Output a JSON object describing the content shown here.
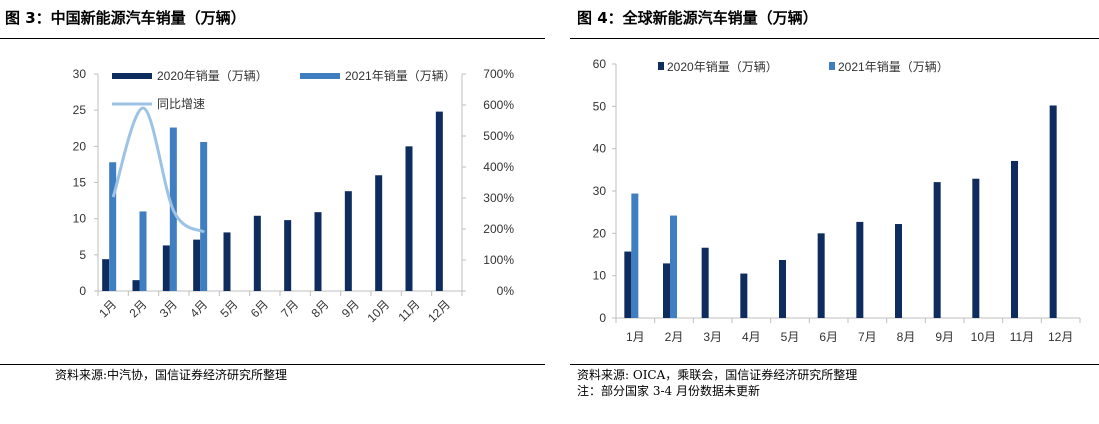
{
  "colors": {
    "series2020": "#0e2d5e",
    "series2021": "#3f7fc1",
    "growth": "#9cc3e6",
    "axis": "#bfbfbf"
  },
  "left": {
    "title": "图 3：中国新能源汽车销量（万辆）",
    "source": "资料来源:中汽协，国信证券经济研究所整理"
  },
  "right": {
    "title": "图 4：全球新能源汽车销量（万辆）",
    "source": "资料来源: OICA，乘联会，国信证券经济研究所整理",
    "note": "注：部分国家 3-4 月份数据未更新"
  },
  "chart_data": [
    {
      "type": "bar",
      "categories": [
        "1月",
        "2月",
        "3月",
        "4月",
        "5月",
        "6月",
        "7月",
        "8月",
        "9月",
        "10月",
        "11月",
        "12月"
      ],
      "series": [
        {
          "name": "2020年销量（万辆）",
          "values": [
            4.4,
            1.5,
            6.3,
            7.1,
            8.1,
            10.4,
            9.8,
            10.9,
            13.8,
            16.0,
            20.0,
            24.8
          ]
        },
        {
          "name": "2021年销量（万辆）",
          "values": [
            17.8,
            11.0,
            22.6,
            20.6,
            null,
            null,
            null,
            null,
            null,
            null,
            null,
            null
          ]
        }
      ],
      "line_series": {
        "name": "同比增速",
        "axis": "secondary",
        "values": [
          303,
          590,
          257,
          190,
          null,
          null,
          null,
          null,
          null,
          null,
          null,
          null
        ]
      },
      "ylim": [
        0,
        30
      ],
      "yticks": [
        0,
        5,
        10,
        15,
        20,
        25,
        30
      ],
      "y2lim": [
        0,
        700
      ],
      "y2ticks": [
        "0%",
        "100%",
        "200%",
        "300%",
        "400%",
        "500%",
        "600%",
        "700%"
      ],
      "legend_position": "top"
    },
    {
      "type": "bar",
      "categories": [
        "1月",
        "2月",
        "3月",
        "4月",
        "5月",
        "6月",
        "7月",
        "8月",
        "9月",
        "10月",
        "11月",
        "12月"
      ],
      "series": [
        {
          "name": "2020年销量（万辆）",
          "values": [
            15.7,
            12.9,
            16.6,
            10.5,
            13.7,
            20.0,
            22.7,
            22.2,
            32.1,
            32.9,
            37.1,
            50.2
          ]
        },
        {
          "name": "2021年销量（万辆）",
          "values": [
            29.4,
            24.2,
            null,
            null,
            null,
            null,
            null,
            null,
            null,
            null,
            null,
            null
          ]
        }
      ],
      "ylim": [
        0,
        60
      ],
      "yticks": [
        0,
        10,
        20,
        30,
        40,
        50,
        60
      ],
      "legend_position": "top"
    }
  ]
}
